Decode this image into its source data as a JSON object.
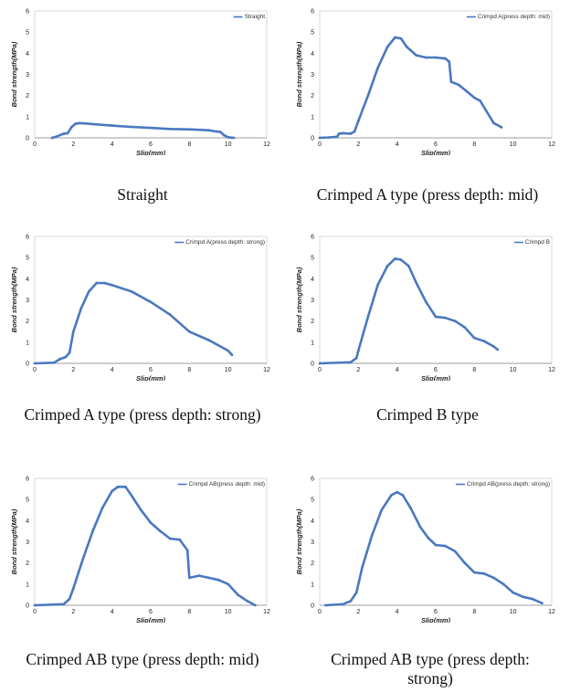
{
  "accent_color": "#4a78c0",
  "charts": [
    {
      "caption": "Straight",
      "chart_data": {
        "type": "line",
        "xlabel": "Slip(mm)",
        "ylabel": "Bond strength(MPa)",
        "xlim": [
          0,
          12
        ],
        "ylim": [
          0,
          6
        ],
        "xticks": [
          "0",
          "2",
          "4",
          "6",
          "8",
          "10",
          "12"
        ],
        "yticks": [
          "0",
          "1",
          "2",
          "3",
          "4",
          "5",
          "6"
        ],
        "legend": "top-right",
        "series": [
          {
            "name": "Straight",
            "x": [
              0.9,
              1.1,
              1.5,
              1.7,
              1.9,
              2.1,
              2.3,
              2.6,
              3.0,
              4.0,
              5.0,
              6.0,
              7.0,
              8.0,
              9.0,
              9.4,
              9.6,
              9.8,
              10.0,
              10.3
            ],
            "y": [
              0,
              0.05,
              0.2,
              0.22,
              0.5,
              0.66,
              0.7,
              0.68,
              0.65,
              0.58,
              0.52,
              0.47,
              0.42,
              0.4,
              0.36,
              0.3,
              0.28,
              0.12,
              0.03,
              0
            ]
          }
        ]
      }
    },
    {
      "caption": "Crimped A type (press depth: mid)",
      "chart_data": {
        "type": "line",
        "xlabel": "Slip(mm)",
        "ylabel": "Bond strength(MPa)",
        "xlim": [
          0,
          12
        ],
        "ylim": [
          0,
          6
        ],
        "xticks": [
          "0",
          "2",
          "4",
          "6",
          "8",
          "10",
          "12"
        ],
        "yticks": [
          "0",
          "1",
          "2",
          "3",
          "4",
          "5",
          "6"
        ],
        "legend": "top-right",
        "series": [
          {
            "name": "Crimpd A(press depth: mid)",
            "x": [
              0,
              0.5,
              0.9,
              1.0,
              1.2,
              1.6,
              1.8,
              2.0,
              2.5,
              3.0,
              3.5,
              3.9,
              4.2,
              4.5,
              5.0,
              5.5,
              6.0,
              6.5,
              6.7,
              6.8,
              7.2,
              7.6,
              8.0,
              8.3,
              8.6,
              9.0,
              9.4
            ],
            "y": [
              0,
              0.02,
              0.05,
              0.2,
              0.22,
              0.2,
              0.3,
              0.8,
              2.0,
              3.3,
              4.3,
              4.75,
              4.7,
              4.3,
              3.9,
              3.8,
              3.8,
              3.75,
              3.6,
              2.65,
              2.5,
              2.2,
              1.9,
              1.75,
              1.3,
              0.7,
              0.5
            ]
          }
        ]
      }
    },
    {
      "caption": "Crimped A type (press depth: strong)",
      "chart_data": {
        "type": "line",
        "xlabel": "Slip(mm)",
        "ylabel": "Bond strength(MPa)",
        "xlim": [
          0,
          12
        ],
        "ylim": [
          0,
          6
        ],
        "xticks": [
          "0",
          "2",
          "4",
          "6",
          "8",
          "10",
          "12"
        ],
        "yticks": [
          "0",
          "1",
          "2",
          "3",
          "4",
          "5",
          "6"
        ],
        "legend": "top-right",
        "series": [
          {
            "name": "Crimpd A(press depth: strong)",
            "x": [
              0,
              1.0,
              1.3,
              1.6,
              1.8,
              2.0,
              2.4,
              2.8,
              3.2,
              3.6,
              4.0,
              5.0,
              6.0,
              7.0,
              8.0,
              9.0,
              10.0,
              10.2
            ],
            "y": [
              0,
              0.03,
              0.2,
              0.3,
              0.5,
              1.5,
              2.6,
              3.4,
              3.8,
              3.8,
              3.7,
              3.4,
              2.9,
              2.3,
              1.5,
              1.1,
              0.6,
              0.4
            ]
          }
        ]
      }
    },
    {
      "caption": "Crimped B type",
      "chart_data": {
        "type": "line",
        "xlabel": "Slip(mm)",
        "ylabel": "Bond strength(MPa)",
        "xlim": [
          0,
          12
        ],
        "ylim": [
          0,
          6
        ],
        "xticks": [
          "0",
          "2",
          "4",
          "6",
          "8",
          "10",
          "12"
        ],
        "yticks": [
          "0",
          "1",
          "2",
          "3",
          "4",
          "5",
          "6"
        ],
        "legend": "top-right",
        "series": [
          {
            "name": "Crimpd B",
            "x": [
              0,
              1.6,
              1.9,
              2.0,
              2.5,
              3.0,
              3.5,
              3.9,
              4.2,
              4.6,
              5.0,
              5.5,
              6.0,
              6.5,
              7.0,
              7.5,
              8.0,
              8.5,
              9.0,
              9.2
            ],
            "y": [
              0,
              0.05,
              0.25,
              0.6,
              2.2,
              3.7,
              4.6,
              4.95,
              4.9,
              4.6,
              3.8,
              2.9,
              2.2,
              2.15,
              2.0,
              1.7,
              1.2,
              1.05,
              0.8,
              0.65
            ]
          }
        ]
      }
    },
    {
      "caption": "Crimped AB type (press depth: mid)",
      "chart_data": {
        "type": "line",
        "xlabel": "Slip(mm)",
        "ylabel": "Bond strength(MPa)",
        "xlim": [
          0,
          12
        ],
        "ylim": [
          0,
          6
        ],
        "xticks": [
          "0",
          "2",
          "4",
          "6",
          "8",
          "10",
          "12"
        ],
        "yticks": [
          "0",
          "1",
          "2",
          "3",
          "4",
          "5",
          "6"
        ],
        "legend": "top-right",
        "series": [
          {
            "name": "Crimpd AB(press depth: mid)",
            "x": [
              0,
              1.5,
              1.8,
              2.0,
              2.5,
              3.0,
              3.5,
              4.0,
              4.3,
              4.7,
              5.0,
              5.5,
              6.0,
              6.5,
              7.0,
              7.5,
              7.9,
              8.0,
              8.5,
              9.0,
              9.5,
              10.0,
              10.5,
              11.0,
              11.4
            ],
            "y": [
              0,
              0.05,
              0.3,
              0.8,
              2.2,
              3.5,
              4.6,
              5.4,
              5.6,
              5.6,
              5.2,
              4.5,
              3.9,
              3.5,
              3.15,
              3.1,
              2.6,
              1.3,
              1.4,
              1.3,
              1.2,
              1.0,
              0.5,
              0.2,
              0
            ]
          }
        ]
      }
    },
    {
      "caption": "Crimped AB type (press depth: strong)",
      "chart_data": {
        "type": "line",
        "xlabel": "Slip(mm)",
        "ylabel": "Bond strength(MPa)",
        "xlim": [
          0,
          12
        ],
        "ylim": [
          0,
          6
        ],
        "xticks": [
          "0",
          "2",
          "4",
          "6",
          "8",
          "10",
          "12"
        ],
        "yticks": [
          "0",
          "1",
          "2",
          "3",
          "4",
          "5",
          "6"
        ],
        "legend": "top-right",
        "series": [
          {
            "name": "Crimpd AB(press depth: strong)",
            "x": [
              0.3,
              1.2,
              1.6,
              1.9,
              2.2,
              2.7,
              3.2,
              3.7,
              4.0,
              4.3,
              4.7,
              5.2,
              5.6,
              6.0,
              6.5,
              7.0,
              7.5,
              8.0,
              8.5,
              9.0,
              9.5,
              10.0,
              10.5,
              11.0,
              11.5
            ],
            "y": [
              0,
              0.05,
              0.2,
              0.6,
              1.8,
              3.3,
              4.5,
              5.2,
              5.35,
              5.2,
              4.6,
              3.7,
              3.2,
              2.85,
              2.8,
              2.55,
              2.0,
              1.55,
              1.5,
              1.3,
              1.0,
              0.6,
              0.4,
              0.3,
              0.1
            ]
          }
        ]
      }
    }
  ]
}
